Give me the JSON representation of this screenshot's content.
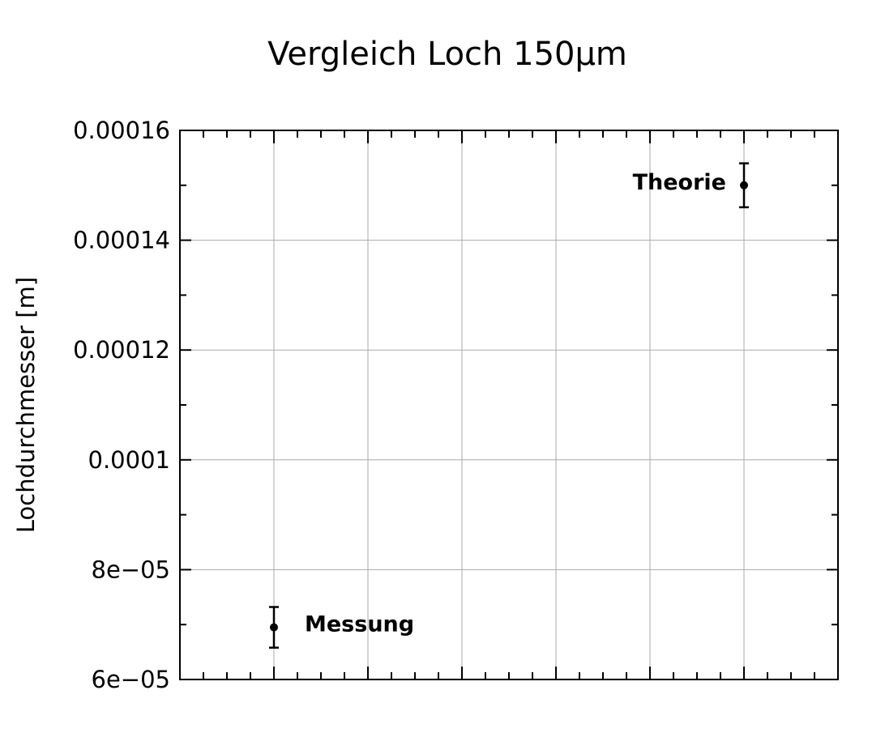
{
  "chart_data": {
    "type": "scatter",
    "title": "Vergleich Loch 150µm",
    "xlabel": "",
    "ylabel": "Lochdurchmesser [m]",
    "ylim": [
      6e-05,
      0.00016
    ],
    "yticks": [
      6e-05,
      8e-05,
      0.0001,
      0.00012,
      0.00014,
      0.00016
    ],
    "ytick_labels": [
      "6e−05",
      "8e−05",
      "0.0001",
      "0.00012",
      "0.00014",
      "0.00016"
    ],
    "xlim": [
      0,
      7
    ],
    "x_tick_labels_shown": false,
    "grid": true,
    "points": [
      {
        "label": "Messung",
        "x": 1,
        "y": 6.95e-05,
        "err": 3.7e-06
      },
      {
        "label": "Theorie",
        "x": 6,
        "y": 0.00015,
        "err": 4e-06
      }
    ]
  }
}
